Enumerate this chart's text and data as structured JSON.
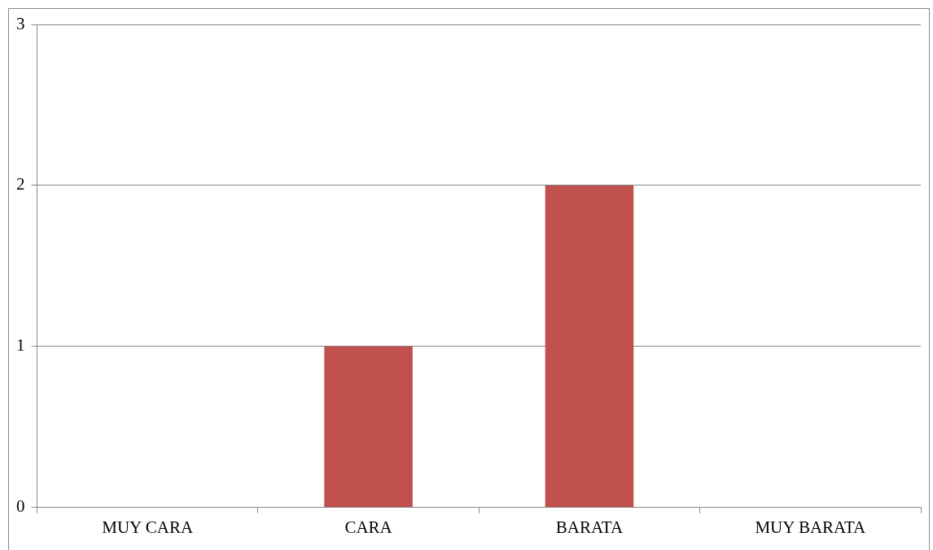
{
  "chart_data": {
    "type": "bar",
    "categories": [
      "MUY CARA",
      "CARA",
      "BARATA",
      "MUY BARATA"
    ],
    "values": [
      0,
      1,
      2,
      0
    ],
    "color": "#c0504d",
    "ylim": [
      0,
      3
    ],
    "yticks": [
      0,
      1,
      2,
      3
    ],
    "grid": "y",
    "legend": false
  }
}
